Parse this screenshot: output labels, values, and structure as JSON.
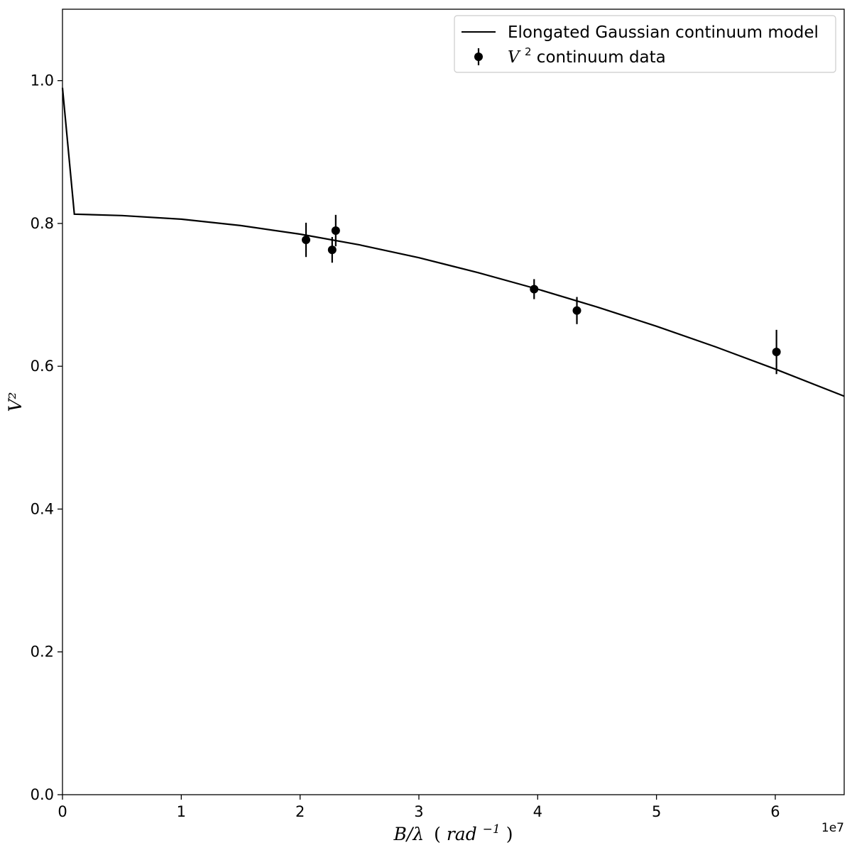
{
  "chart_data": {
    "type": "scatter",
    "title": "",
    "xlabel": {
      "main": "B/λ",
      "unit_prefix": "(",
      "unit_base": "rad",
      "unit_exp": "−1",
      "unit_suffix": ")"
    },
    "ylabel": "V²",
    "x_offset_text": "1e7",
    "xlim": [
      0,
      6.58
    ],
    "ylim": [
      0.0,
      1.1
    ],
    "x_ticks": [
      0,
      1,
      2,
      3,
      4,
      5,
      6
    ],
    "x_tick_labels": [
      "0",
      "1",
      "2",
      "3",
      "4",
      "5",
      "6"
    ],
    "y_ticks": [
      0.0,
      0.2,
      0.4,
      0.6,
      0.8,
      1.0
    ],
    "y_tick_labels": [
      "0.0",
      "0.2",
      "0.4",
      "0.6",
      "0.8",
      "1.0"
    ],
    "grid": false,
    "legend_position": "top-right",
    "series": [
      {
        "name": "Elongated Gaussian continuum model",
        "kind": "line",
        "color": "#000000",
        "x": [
          0.0,
          0.1,
          0.5,
          1.0,
          1.5,
          2.0,
          2.5,
          3.0,
          3.5,
          4.0,
          4.5,
          5.0,
          5.5,
          6.0,
          6.58
        ],
        "y": [
          0.99,
          0.813,
          0.811,
          0.806,
          0.797,
          0.785,
          0.77,
          0.752,
          0.731,
          0.708,
          0.683,
          0.656,
          0.627,
          0.596,
          0.558
        ]
      },
      {
        "name_italic": "V",
        "name_sup": "2",
        "name_rest": " continuum data",
        "kind": "errorbar",
        "color": "#000000",
        "x": [
          2.05,
          2.27,
          2.3,
          3.97,
          4.33,
          6.01
        ],
        "y": [
          0.777,
          0.763,
          0.79,
          0.708,
          0.678,
          0.62
        ],
        "yerr": [
          0.024,
          0.018,
          0.022,
          0.014,
          0.019,
          0.031
        ]
      }
    ]
  }
}
